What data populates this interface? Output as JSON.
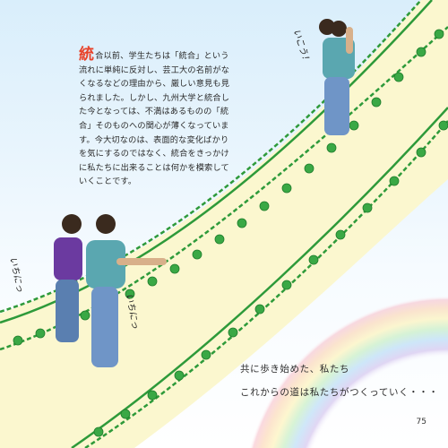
{
  "body_text": {
    "first_char": "統",
    "rest": "合以前、学生たちは「統合」という流れに単純に反対し、芸工大の名前がなくなるなどの理由から、厳しい意見も見られました。しかし、九州大学と統合した今となっては、不満はあるものの「統合」そのものへの関心が薄くなっています。今大切なのは、表面的な変化ばかりを気にするのではなく、統合をきっかけに私たちに出来ることは何かを模索していくことです。"
  },
  "captions": {
    "line1": "共に歩き始めた、私たち",
    "line2": "これからの道は私たちがつくっていく・・・"
  },
  "handwriting": {
    "right": "いこう！",
    "left": "いちにっ",
    "center": "いちにっ"
  },
  "page_number": "75",
  "colors": {
    "sky_top": "#d9eefb",
    "path": "#fbf7cf",
    "vine": "#2e9a3a",
    "dropcap": "#e8432b"
  }
}
